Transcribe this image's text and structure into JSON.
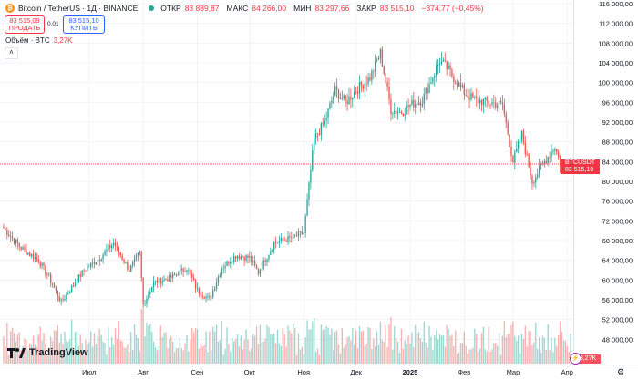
{
  "header": {
    "symbol_icon": "bitcoin-icon",
    "title": "Bitcoin / TetherUS · 1Д · BINANCE",
    "status_color": "#26a69a",
    "ohlc": [
      {
        "label": "ОТКР",
        "value": "83 889,87"
      },
      {
        "label": "МАКС",
        "value": "84 266,00"
      },
      {
        "label": "МИН",
        "value": "83 297,66"
      },
      {
        "label": "ЗАКР",
        "value": "83 515,10"
      },
      {
        "label": "",
        "value": "−374,77 (−0,45%)"
      }
    ]
  },
  "trade": {
    "sell_price": "83 515,09",
    "sell_label": "ПРОДАТЬ",
    "spread": "0,01",
    "buy_price": "83 515,10",
    "buy_label": "КУПИТЬ"
  },
  "volume_legend": {
    "label": "Объём · BTC",
    "value": "3,27K"
  },
  "collapse_icon": "chevron-up-icon",
  "price_label": {
    "symbol": "BTCUSDT",
    "price": "83 515,10",
    "countdown": "15:01:44"
  },
  "volume_axis_label": "3,27K",
  "logo": {
    "text": "TradingView"
  },
  "settings_icon": "gear-icon",
  "colors": {
    "up": "#26a69a",
    "down": "#ef5350",
    "vol_up": "#26a69a",
    "vol_down": "#ef5350",
    "last_price_line": "#f23645"
  },
  "chart_data": {
    "type": "candlestick",
    "interval": "1D",
    "y_axis": {
      "range": [
        44000,
        116000
      ],
      "ticks": [
        "116 000,00",
        "112 000,00",
        "108 000,00",
        "104 000,00",
        "100 000,00",
        "96 000,00",
        "92 000,00",
        "88 000,00",
        "84 000,00",
        "80 000,00",
        "76 000,00",
        "72 000,00",
        "68 000,00",
        "64 000,00",
        "60 000,00",
        "56 000,00",
        "52 000,00",
        "48 000,00"
      ],
      "tick_values": [
        116000,
        112000,
        108000,
        104000,
        100000,
        96000,
        92000,
        88000,
        84000,
        80000,
        76000,
        72000,
        68000,
        64000,
        60000,
        56000,
        52000,
        48000
      ]
    },
    "x_axis": {
      "labels": [
        "Июл",
        "Авг",
        "Сен",
        "Окт",
        "Ноя",
        "Дек",
        "2025",
        "Фев",
        "Мар",
        "Апр"
      ],
      "label_day_index": [
        49,
        80,
        111,
        141,
        172,
        202,
        233,
        264,
        292,
        323
      ],
      "n_days": 326
    },
    "last_price": 83515.1,
    "close_anchors": [
      {
        "day": 0,
        "value": 70500
      },
      {
        "day": 10,
        "value": 66500
      },
      {
        "day": 20,
        "value": 64000
      },
      {
        "day": 26,
        "value": 60500
      },
      {
        "day": 33,
        "value": 55500
      },
      {
        "day": 38,
        "value": 58000
      },
      {
        "day": 46,
        "value": 62000
      },
      {
        "day": 55,
        "value": 64500
      },
      {
        "day": 63,
        "value": 67500
      },
      {
        "day": 72,
        "value": 62000
      },
      {
        "day": 78,
        "value": 65500
      },
      {
        "day": 80,
        "value": 55000
      },
      {
        "day": 86,
        "value": 59500
      },
      {
        "day": 96,
        "value": 60500
      },
      {
        "day": 105,
        "value": 62500
      },
      {
        "day": 111,
        "value": 58000
      },
      {
        "day": 118,
        "value": 56000
      },
      {
        "day": 125,
        "value": 62500
      },
      {
        "day": 133,
        "value": 65000
      },
      {
        "day": 141,
        "value": 64500
      },
      {
        "day": 146,
        "value": 61500
      },
      {
        "day": 155,
        "value": 67500
      },
      {
        "day": 165,
        "value": 68500
      },
      {
        "day": 172,
        "value": 69500
      },
      {
        "day": 178,
        "value": 88500
      },
      {
        "day": 184,
        "value": 92000
      },
      {
        "day": 190,
        "value": 98500
      },
      {
        "day": 196,
        "value": 96000
      },
      {
        "day": 202,
        "value": 98500
      },
      {
        "day": 210,
        "value": 101000
      },
      {
        "day": 216,
        "value": 106000
      },
      {
        "day": 222,
        "value": 94500
      },
      {
        "day": 228,
        "value": 94000
      },
      {
        "day": 233,
        "value": 95500
      },
      {
        "day": 240,
        "value": 96500
      },
      {
        "day": 250,
        "value": 104500
      },
      {
        "day": 255,
        "value": 102500
      },
      {
        "day": 264,
        "value": 98000
      },
      {
        "day": 270,
        "value": 96500
      },
      {
        "day": 278,
        "value": 96000
      },
      {
        "day": 286,
        "value": 95500
      },
      {
        "day": 292,
        "value": 84000
      },
      {
        "day": 297,
        "value": 89500
      },
      {
        "day": 303,
        "value": 80000
      },
      {
        "day": 310,
        "value": 84000
      },
      {
        "day": 316,
        "value": 87000
      },
      {
        "day": 320,
        "value": 82500
      },
      {
        "day": 326,
        "value": 83515
      }
    ],
    "volume_note": "relative volume bars along bottom, latest volume 3,27K BTC"
  }
}
